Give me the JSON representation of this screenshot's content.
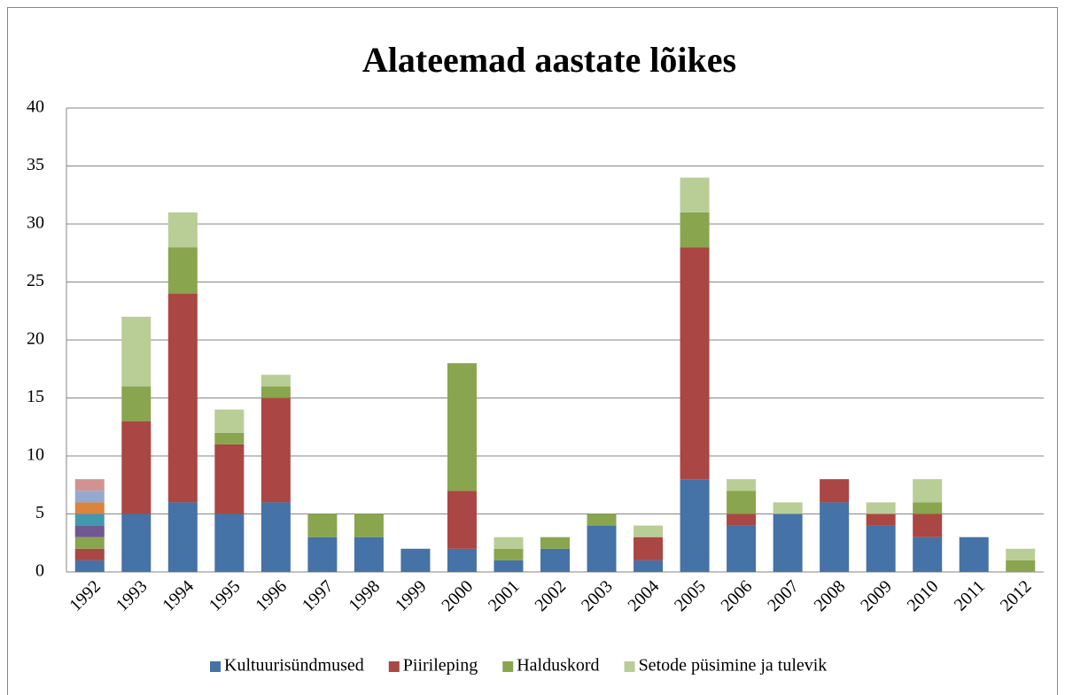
{
  "chart_data": {
    "type": "bar",
    "stacked": true,
    "title": "Alateemad aastate lõikes",
    "categories": [
      "1992",
      "1993",
      "1994",
      "1995",
      "1996",
      "1997",
      "1998",
      "1999",
      "2000",
      "2001",
      "2002",
      "2003",
      "2004",
      "2005",
      "2006",
      "2007",
      "2008",
      "2009",
      "2010",
      "2011",
      "2012"
    ],
    "series": [
      {
        "name": "Kultuurisündmused",
        "color": "#4572a7",
        "values": [
          1,
          5,
          6,
          5,
          6,
          3,
          3,
          2,
          2,
          1,
          2,
          4,
          1,
          8,
          4,
          5,
          6,
          4,
          3,
          3,
          0
        ]
      },
      {
        "name": "Piirileping",
        "color": "#aa4643",
        "values": [
          1,
          8,
          18,
          6,
          9,
          0,
          0,
          0,
          5,
          0,
          0,
          0,
          2,
          20,
          1,
          0,
          2,
          1,
          2,
          0,
          0
        ]
      },
      {
        "name": "Halduskord",
        "color": "#89a54e",
        "values": [
          1,
          3,
          4,
          1,
          1,
          2,
          2,
          0,
          11,
          1,
          1,
          1,
          0,
          3,
          2,
          0,
          0,
          0,
          1,
          0,
          1
        ]
      },
      {
        "name": "Setode püsimine ja tulevik",
        "color": "#b9cd96",
        "values": [
          0,
          6,
          3,
          2,
          1,
          0,
          0,
          0,
          0,
          1,
          0,
          0,
          1,
          3,
          1,
          1,
          0,
          1,
          2,
          0,
          1
        ]
      },
      {
        "color": "#71588f",
        "values": [
          1,
          0,
          0,
          0,
          0,
          0,
          0,
          0,
          0,
          0,
          0,
          0,
          0,
          0,
          0,
          0,
          0,
          0,
          0,
          0,
          0
        ]
      },
      {
        "color": "#4198af",
        "values": [
          1,
          0,
          0,
          0,
          0,
          0,
          0,
          0,
          0,
          0,
          0,
          0,
          0,
          0,
          0,
          0,
          0,
          0,
          0,
          0,
          0
        ]
      },
      {
        "color": "#db843d",
        "values": [
          1,
          0,
          0,
          0,
          0,
          0,
          0,
          0,
          0,
          0,
          0,
          0,
          0,
          0,
          0,
          0,
          0,
          0,
          0,
          0,
          0
        ]
      },
      {
        "color": "#93a9cf",
        "values": [
          1,
          0,
          0,
          0,
          0,
          0,
          0,
          0,
          0,
          0,
          0,
          0,
          0,
          0,
          0,
          0,
          0,
          0,
          0,
          0,
          0
        ]
      },
      {
        "color": "#d19392",
        "values": [
          1,
          0,
          0,
          0,
          0,
          0,
          0,
          0,
          0,
          0,
          0,
          0,
          0,
          0,
          0,
          0,
          0,
          0,
          0,
          0,
          0
        ]
      }
    ],
    "ylim": [
      0,
      40
    ],
    "yticks": [
      0,
      5,
      10,
      15,
      20,
      25,
      30,
      35,
      40
    ],
    "grid": true,
    "legend": "bottom"
  }
}
